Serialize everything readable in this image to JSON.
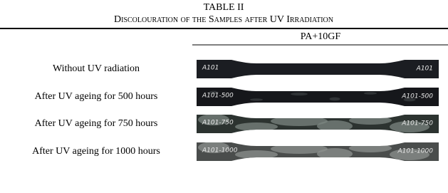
{
  "table": {
    "title": "TABLE II",
    "caption": "Discolouration of the Samples after UV Irradiation",
    "column_header": "PA+10GF",
    "rows": [
      {
        "label": "Without UV radiation",
        "sample_labels": [
          "A101",
          "A101"
        ]
      },
      {
        "label": "After UV ageing for 500 hours",
        "sample_labels": [
          "A101-500",
          "A101-500"
        ]
      },
      {
        "label": "After UV ageing for 750 hours",
        "sample_labels": [
          "A101-750",
          "A101-750"
        ]
      },
      {
        "label": "After UV ageing for 1000 hours",
        "sample_labels": [
          "A101-1000",
          "A101-1000"
        ]
      }
    ]
  }
}
